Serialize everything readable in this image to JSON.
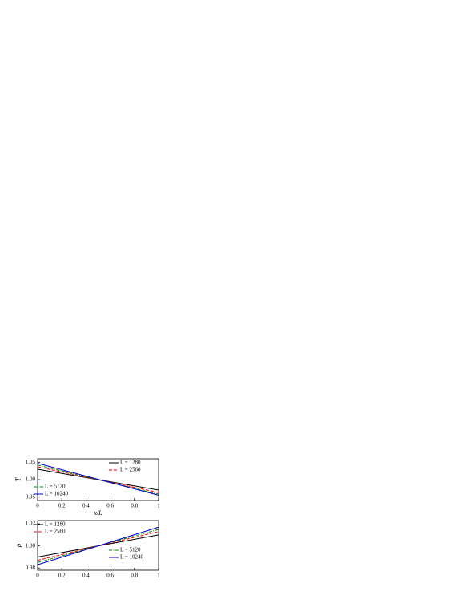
{
  "chart_data": [
    {
      "type": "line",
      "ylabel": "T",
      "xlabel": "x/L",
      "x": [
        0,
        1
      ],
      "xlim": [
        0,
        1
      ],
      "xticks": [
        0,
        0.2,
        0.4,
        0.6,
        0.8,
        1
      ],
      "ylim": [
        0.94,
        1.06
      ],
      "yticks": [
        0.95,
        {
          "value": 1,
          "label": "1.00"
        },
        1.05
      ],
      "series": [
        {
          "name": "L = 1280",
          "color": "#000000",
          "dash": "solid",
          "values": [
            1.03,
            0.97
          ]
        },
        {
          "name": "L = 2560",
          "color": "#ff0000",
          "dash": "dashed",
          "values": [
            1.037,
            0.963
          ]
        },
        {
          "name": "L = 5120",
          "color": "#008000",
          "dash": "dashdot",
          "values": [
            1.042,
            0.958
          ]
        },
        {
          "name": "L = 10240",
          "color": "#0000cc",
          "dash": "solid",
          "values": [
            1.047,
            0.955
          ]
        }
      ]
    },
    {
      "type": "line",
      "ylabel": "ρ",
      "x": [
        0,
        1
      ],
      "xlim": [
        0,
        1
      ],
      "xticks": [
        0,
        0.2,
        0.4,
        0.6,
        0.8,
        1
      ],
      "ylim": [
        0.978,
        1.023
      ],
      "yticks": [
        0.98,
        {
          "value": 1,
          "label": "1.00"
        },
        1.02
      ],
      "series": [
        {
          "name": "L = 1280",
          "color": "#000000",
          "dash": "solid",
          "values": [
            0.99,
            1.01
          ]
        },
        {
          "name": "L = 2560",
          "color": "#ff0000",
          "dash": "dashed",
          "values": [
            0.987,
            1.013
          ]
        },
        {
          "name": "L = 5120",
          "color": "#008000",
          "dash": "dashdot",
          "values": [
            0.985,
            1.015
          ]
        },
        {
          "name": "L = 10240",
          "color": "#0000cc",
          "dash": "solid",
          "values": [
            0.983,
            1.017
          ]
        }
      ]
    }
  ]
}
